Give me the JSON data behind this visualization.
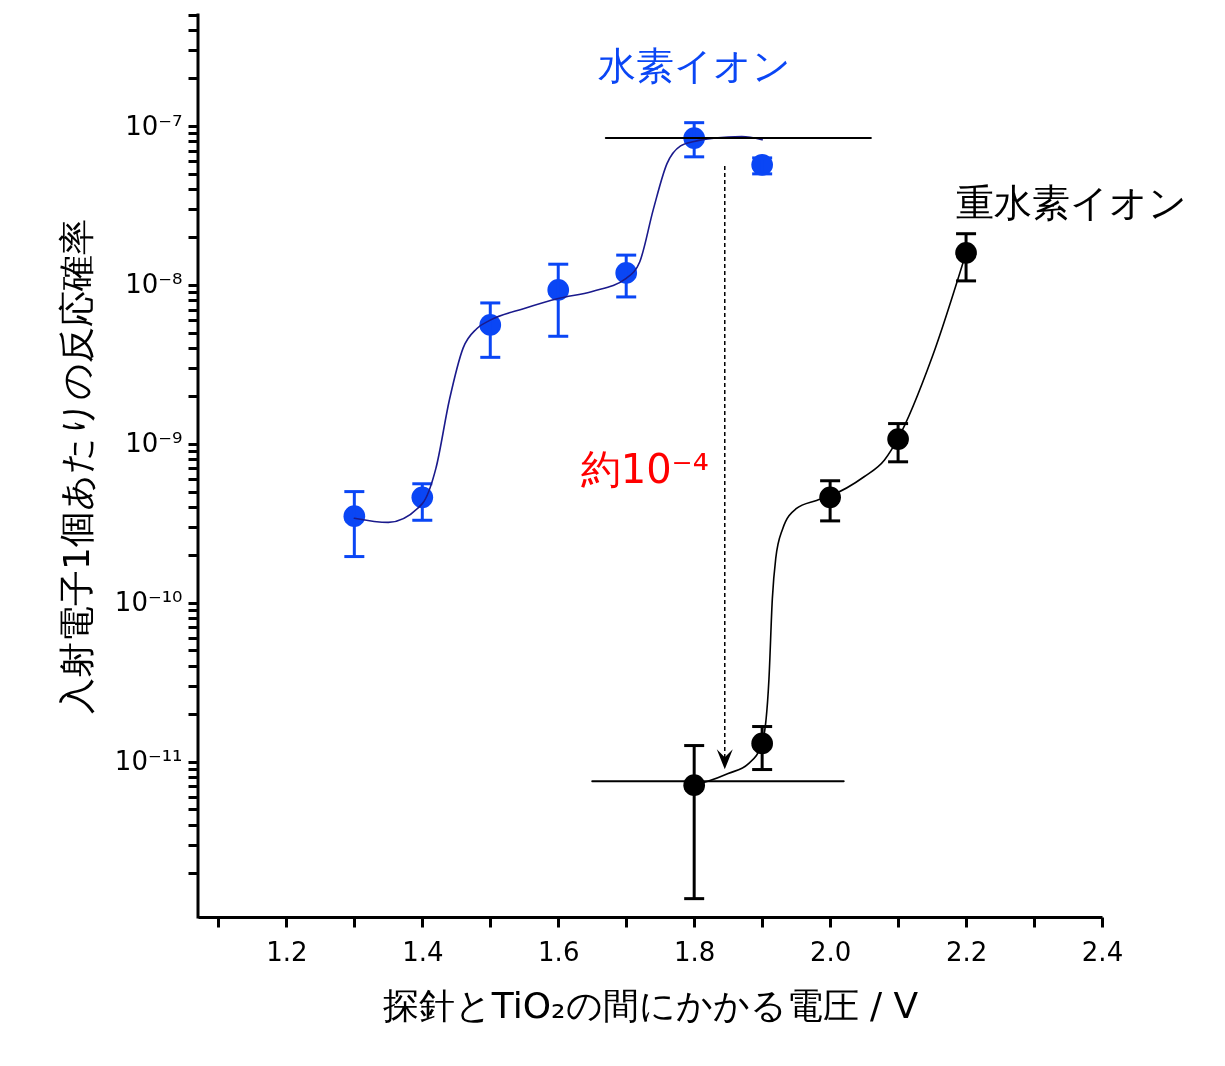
{
  "chart_data": {
    "type": "scatter",
    "xlabel": "探針とTiO₂の間にかかる電圧 / V",
    "ylabel": "入射電子1個あたりの反応確率",
    "xlim": [
      1.07,
      2.4
    ],
    "xticks": [
      {
        "value": 1.1,
        "label": null
      },
      1.2,
      {
        "value": 1.3,
        "label": null
      },
      1.4,
      {
        "value": 1.5,
        "label": null
      },
      1.6,
      {
        "value": 1.7,
        "label": null
      },
      1.8,
      {
        "value": 1.9,
        "label": null
      },
      {
        "value": 2.0,
        "label": "2.0"
      },
      {
        "value": 2.1,
        "label": null
      },
      2.2,
      {
        "value": 2.3,
        "label": null
      },
      2.4
    ],
    "ylim": [
      1.05e-12,
      5e-07
    ],
    "log": true,
    "yticks": [
      {
        "value": 2e-12,
        "label": null
      },
      {
        "value": 3e-12,
        "label": null
      },
      {
        "value": 4e-12,
        "label": null
      },
      {
        "value": 5e-12,
        "label": null
      },
      {
        "value": 6e-12,
        "label": null
      },
      {
        "value": 7e-12,
        "label": null
      },
      {
        "value": 8e-12,
        "label": null
      },
      {
        "value": 9e-12,
        "label": null
      },
      {
        "value": 1e-11,
        "label": "10⁻¹¹"
      },
      {
        "value": 2e-11,
        "label": null
      },
      {
        "value": 3e-11,
        "label": null
      },
      {
        "value": 4e-11,
        "label": null
      },
      {
        "value": 5e-11,
        "label": null
      },
      {
        "value": 6e-11,
        "label": null
      },
      {
        "value": 7e-11,
        "label": null
      },
      {
        "value": 8e-11,
        "label": null
      },
      {
        "value": 9e-11,
        "label": null
      },
      {
        "value": 1e-10,
        "label": "10⁻¹⁰"
      },
      {
        "value": 2e-10,
        "label": null
      },
      {
        "value": 3e-10,
        "label": null
      },
      {
        "value": 4e-10,
        "label": null
      },
      {
        "value": 5e-10,
        "label": null
      },
      {
        "value": 6e-10,
        "label": null
      },
      {
        "value": 7e-10,
        "label": null
      },
      {
        "value": 8e-10,
        "label": null
      },
      {
        "value": 9e-10,
        "label": null
      },
      {
        "value": 1e-09,
        "label": "10⁻⁹"
      },
      {
        "value": 2e-09,
        "label": null
      },
      {
        "value": 3e-09,
        "label": null
      },
      {
        "value": 4e-09,
        "label": null
      },
      {
        "value": 5e-09,
        "label": null
      },
      {
        "value": 6e-09,
        "label": null
      },
      {
        "value": 7e-09,
        "label": null
      },
      {
        "value": 8e-09,
        "label": null
      },
      {
        "value": 9e-09,
        "label": null
      },
      {
        "value": 1e-08,
        "label": "10⁻⁸"
      },
      {
        "value": 2e-08,
        "label": null
      },
      {
        "value": 3e-08,
        "label": null
      },
      {
        "value": 4e-08,
        "label": null
      },
      {
        "value": 5e-08,
        "label": null
      },
      {
        "value": 6e-08,
        "label": null
      },
      {
        "value": 7e-08,
        "label": null
      },
      {
        "value": 8e-08,
        "label": null
      },
      {
        "value": 9e-08,
        "label": null
      },
      {
        "value": 1e-07,
        "label": "10⁻⁷"
      },
      {
        "value": 2e-07,
        "label": null
      },
      {
        "value": 3e-07,
        "label": null
      },
      {
        "value": 4e-07,
        "label": null
      },
      {
        "value": 5e-07,
        "label": null
      }
    ],
    "grid": false,
    "series": [
      {
        "type": "line",
        "marker": "none",
        "color": "#1a1a8c",
        "x": [
          1.3,
          1.35,
          1.4,
          1.42,
          1.44,
          1.46,
          1.48,
          1.5,
          1.55,
          1.6,
          1.65,
          1.7,
          1.72,
          1.74,
          1.76,
          1.78,
          1.8,
          1.83,
          1.87,
          1.9
        ],
        "values": [
          3.4e-10,
          3.2e-10,
          4.2e-10,
          7e-10,
          1.9e-09,
          4e-09,
          5.3e-09,
          6e-09,
          7.1e-09,
          8.2e-09,
          9.1e-09,
          1.1e-08,
          1.4e-08,
          3e-08,
          5.8e-08,
          7.5e-08,
          8e-08,
          8.4e-08,
          8.6e-08,
          8.2e-08
        ]
      },
      {
        "type": "line",
        "marker": "none",
        "color": "#000000",
        "x": [
          1.8,
          1.82,
          1.85,
          1.88,
          1.9,
          1.91,
          1.915,
          1.92,
          1.93,
          1.95,
          1.98,
          2.0,
          2.05,
          2.08,
          2.1,
          2.15,
          2.2
        ],
        "values": [
          7.1e-12,
          7.5e-12,
          8.4e-12,
          9.7e-12,
          1.3e-11,
          3.3e-11,
          1.06e-10,
          1.9e-10,
          2.9e-10,
          3.9e-10,
          4.4e-10,
          4.7e-10,
          6.2e-10,
          7.9e-10,
          1.08e-09,
          3.5e-09,
          1.59e-08
        ]
      },
      {
        "type": "line",
        "marker": "none",
        "color": "#000000",
        "x": [
          1.67,
          2.06
        ],
        "values": [
          8.4e-08,
          8.4e-08
        ]
      },
      {
        "type": "line",
        "marker": "none",
        "color": "#000000",
        "x": [
          1.65,
          2.02
        ],
        "values": [
          7.5e-12,
          7.5e-12
        ]
      },
      {
        "name": "水素イオン",
        "marker": "circle",
        "color": "#0a46f5",
        "x": [
          1.3,
          1.4,
          1.5,
          1.6,
          1.7,
          1.8,
          1.9
        ],
        "values": [
          3.5e-10,
          4.6e-10,
          5.6e-09,
          9.3e-09,
          1.19e-08,
          8.4e-08,
          5.7e-08
        ],
        "errors": [
          [
            1.95e-10,
            5e-10
          ],
          [
            3.3e-10,
            5.6e-10
          ],
          [
            3.5e-09,
            7.7e-09
          ],
          [
            4.75e-09,
            1.35e-08
          ],
          [
            8.4e-09,
            1.54e-08
          ],
          [
            6.4e-08,
            1.05e-07
          ],
          [
            5e-08,
            6.3e-08
          ]
        ]
      },
      {
        "name": "重水素イオン",
        "marker": "circle",
        "color": "#000000",
        "x": [
          1.8,
          1.9,
          2.0,
          2.1,
          2.2
        ],
        "values": [
          7.1e-12,
          1.3e-11,
          4.6e-10,
          1.07e-09,
          1.59e-08
        ],
        "errors": [
          [
            1.37e-12,
            1.26e-11
          ],
          [
            8.9e-12,
            1.66e-11
          ],
          [
            3.27e-10,
            5.85e-10
          ],
          [
            7.7e-10,
            1.34e-09
          ],
          [
            1.06e-08,
            2.1e-08
          ]
        ]
      }
    ],
    "annotations": [
      "約10⁻⁴"
    ]
  }
}
